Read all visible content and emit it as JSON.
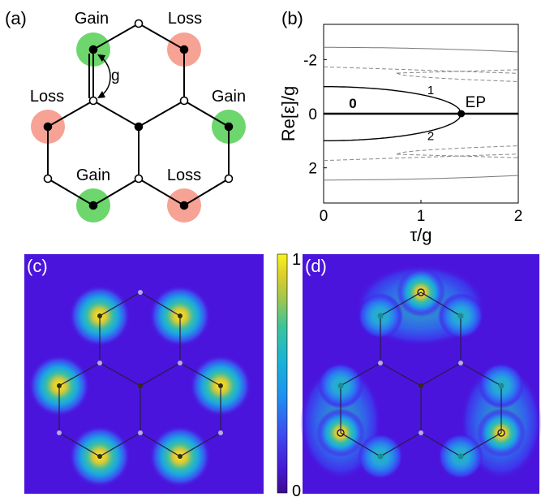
{
  "panel_a": {
    "label": "(a)",
    "site_labels": [
      "Gain",
      "Loss",
      "Loss",
      "Gain",
      "Gain",
      "Loss"
    ],
    "coupling_label": "g",
    "gain_color": "#6dd66d",
    "loss_color": "#f6a395"
  },
  "panel_b": {
    "label": "(b)",
    "ylabel": "Re[ε]/g",
    "xlabel": "τ/g",
    "x_ticks": [
      "0",
      "1",
      "2"
    ],
    "y_ticks": [
      "-2",
      "0",
      "2"
    ],
    "annotations": {
      "zero_mode": "0",
      "branch_1": "1",
      "branch_2": "2",
      "ep": "EP"
    }
  },
  "panel_c": {
    "label": "(c)"
  },
  "panel_d": {
    "label": "(d)"
  },
  "colorbar": {
    "max_label": "1",
    "min_label": "0"
  },
  "chart_data": {
    "type": "line",
    "title": "",
    "xlabel": "τ/g",
    "ylabel": "Re[ε]/g",
    "xlim": [
      0,
      2
    ],
    "ylim": [
      3.3,
      -3.3
    ],
    "y_inverted": true,
    "series": [
      {
        "name": "0",
        "x": [
          0,
          2
        ],
        "y": [
          0,
          0
        ]
      },
      {
        "name": "1",
        "x": [
          0,
          0.3,
          0.6,
          0.9,
          1.1,
          1.3,
          1.414
        ],
        "y": [
          -1.0,
          -0.98,
          -0.9,
          -0.77,
          -0.64,
          -0.39,
          0
        ]
      },
      {
        "name": "2",
        "x": [
          0,
          0.3,
          0.6,
          0.9,
          1.1,
          1.3,
          1.414
        ],
        "y": [
          1.0,
          0.98,
          0.9,
          0.77,
          0.64,
          0.39,
          0
        ]
      }
    ],
    "ep_x": 1.414
  }
}
